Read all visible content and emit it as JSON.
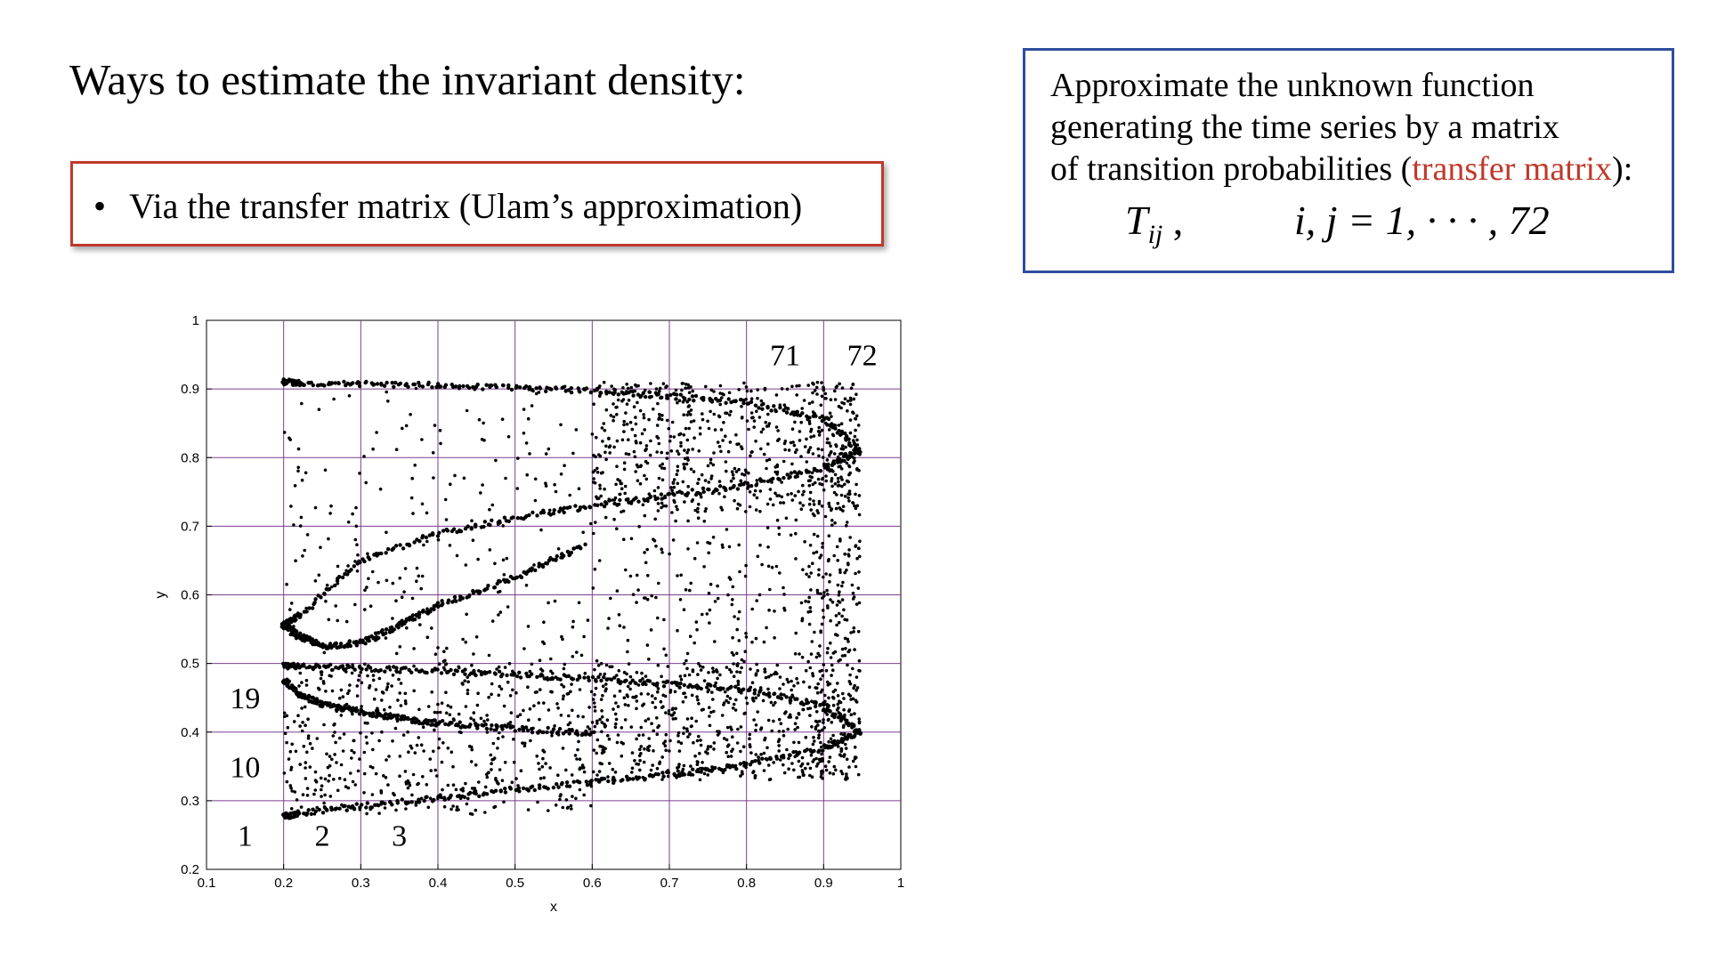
{
  "slide": {
    "title": "Ways to estimate the invariant density:",
    "method_bullet": "•",
    "method_text": "Via the transfer matrix (Ulam’s approximation)"
  },
  "info": {
    "line1": "Approximate the unknown function",
    "line2": "generating the time series by a matrix",
    "line3_pre": "of transition probabilities (",
    "line3_highlight": "transfer matrix",
    "line3_post": "):",
    "formula_T": "T",
    "formula_sub": "ij",
    "formula_comma": ",",
    "formula_range": "i, j = 1, · · · , 72"
  },
  "colors": {
    "method_border": "#c0392b",
    "info_border": "#2e4d9c",
    "highlight": "#c0392b",
    "grid": "#7b3f8f",
    "points": "#000000"
  },
  "chart_data": {
    "type": "scatter",
    "xlabel": "x",
    "ylabel": "y",
    "xlim": [
      0.1,
      1
    ],
    "ylim": [
      0.2,
      1
    ],
    "xticks": [
      "0.1",
      "0.2",
      "0.3",
      "0.4",
      "0.5",
      "0.6",
      "0.7",
      "0.8",
      "0.9",
      "1"
    ],
    "yticks": [
      "0.2",
      "0.3",
      "0.4",
      "0.5",
      "0.6",
      "0.7",
      "0.8",
      "0.9",
      "1"
    ],
    "grid": "on",
    "grid_x": [
      0.2,
      0.3,
      0.4,
      0.5,
      0.6,
      0.7,
      0.8,
      0.9
    ],
    "grid_y": [
      0.3,
      0.4,
      0.5,
      0.6,
      0.7,
      0.8,
      0.9
    ],
    "cell_labels": [
      {
        "text": "1",
        "x": 0.15,
        "y": 0.25
      },
      {
        "text": "2",
        "x": 0.25,
        "y": 0.25
      },
      {
        "text": "3",
        "x": 0.35,
        "y": 0.25
      },
      {
        "text": "10",
        "x": 0.15,
        "y": 0.35
      },
      {
        "text": "19",
        "x": 0.15,
        "y": 0.45
      },
      {
        "text": "71",
        "x": 0.85,
        "y": 0.95
      },
      {
        "text": "72",
        "x": 0.95,
        "y": 0.95
      }
    ],
    "curves": [
      {
        "name": "",
        "x": [
          0.947,
          0.9,
          0.8,
          0.7,
          0.6,
          0.5,
          0.4,
          0.3,
          0.22,
          0.2
        ],
        "y": [
          0.4,
          0.377,
          0.352,
          0.338,
          0.327,
          0.316,
          0.304,
          0.292,
          0.282,
          0.277
        ]
      },
      {
        "name": "",
        "x": [
          0.947,
          0.9,
          0.8,
          0.7,
          0.6,
          0.5,
          0.4,
          0.3,
          0.22,
          0.2
        ],
        "y": [
          0.4,
          0.437,
          0.462,
          0.47,
          0.478,
          0.484,
          0.489,
          0.493,
          0.496,
          0.497
        ]
      },
      {
        "name": "",
        "x": [
          0.947,
          0.9,
          0.8,
          0.7,
          0.6,
          0.5,
          0.4,
          0.3,
          0.22,
          0.2
        ],
        "y": [
          0.81,
          0.785,
          0.76,
          0.745,
          0.73,
          0.712,
          0.69,
          0.65,
          0.57,
          0.555
        ]
      },
      {
        "name": "",
        "x": [
          0.947,
          0.9,
          0.8,
          0.7,
          0.6,
          0.5,
          0.4,
          0.3,
          0.22,
          0.2
        ],
        "y": [
          0.81,
          0.857,
          0.88,
          0.89,
          0.897,
          0.902,
          0.905,
          0.907,
          0.909,
          0.91
        ]
      },
      {
        "name": "",
        "x": [
          0.2,
          0.22,
          0.25,
          0.3,
          0.35,
          0.4,
          0.5,
          0.59
        ],
        "y": [
          0.555,
          0.54,
          0.525,
          0.53,
          0.555,
          0.585,
          0.625,
          0.672
        ]
      },
      {
        "name": "",
        "x": [
          0.2,
          0.22,
          0.25,
          0.3,
          0.35,
          0.4,
          0.5,
          0.6
        ],
        "y": [
          0.475,
          0.455,
          0.44,
          0.43,
          0.42,
          0.413,
          0.405,
          0.398
        ]
      }
    ],
    "scatter_regions": [
      {
        "x": [
          0.2,
          0.6
        ],
        "y": [
          0.28,
          0.5
        ],
        "count": 520
      },
      {
        "x": [
          0.6,
          0.947
        ],
        "y": [
          0.33,
          0.5
        ],
        "count": 620
      },
      {
        "x": [
          0.6,
          0.947
        ],
        "y": [
          0.72,
          0.91
        ],
        "count": 600
      },
      {
        "x": [
          0.2,
          0.6
        ],
        "y": [
          0.5,
          0.91
        ],
        "count": 230
      },
      {
        "x": [
          0.6,
          0.947
        ],
        "y": [
          0.5,
          0.72
        ],
        "count": 200
      },
      {
        "x": [
          0.88,
          0.947
        ],
        "y": [
          0.33,
          0.91
        ],
        "count": 260
      }
    ]
  }
}
